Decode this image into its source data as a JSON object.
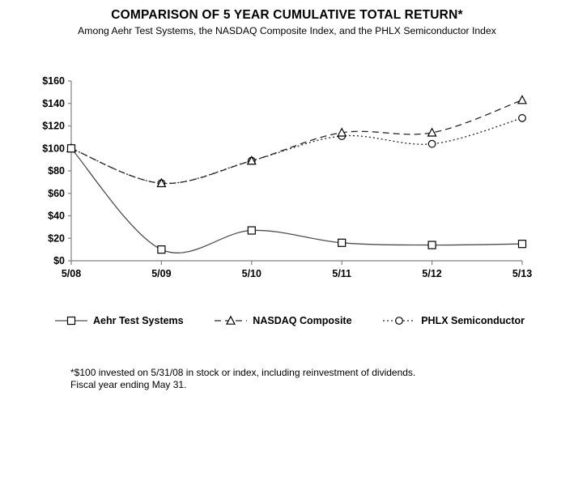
{
  "header": {
    "title": "COMPARISON OF 5 YEAR CUMULATIVE TOTAL RETURN*",
    "subtitle": "Among Aehr Test Systems, the NASDAQ Composite Index, and the PHLX Semiconductor Index"
  },
  "footnote": {
    "line1": "*$100 invested on 5/31/08 in stock or index, including reinvestment of dividends.",
    "line2": "Fiscal year ending May 31."
  },
  "colors": {
    "axis": "#808080",
    "tick_text": "#000000",
    "aehr_line": "#4d4d4d",
    "nasdaq_line": "#262626",
    "phlx_line": "#262626",
    "marker_stroke": "#000000",
    "marker_fill": "#ffffff"
  },
  "chart_data": {
    "type": "line",
    "title": "COMPARISON OF 5 YEAR CUMULATIVE TOTAL RETURN*",
    "subtitle": "Among Aehr Test Systems, the NASDAQ Composite Index, and the PHLX Semiconductor Index",
    "categories": [
      "5/08",
      "5/09",
      "5/10",
      "5/11",
      "5/12",
      "5/13"
    ],
    "y_tick_labels": [
      "$0",
      "$20",
      "$40",
      "$60",
      "$80",
      "$100",
      "$120",
      "$140",
      "$160"
    ],
    "ylim": [
      0,
      160
    ],
    "y_tick_step": 20,
    "grid": false,
    "legend_position": "bottom",
    "series": [
      {
        "name": "Aehr Test Systems",
        "values": [
          100,
          10,
          27,
          16,
          14,
          15
        ],
        "line_style": "solid",
        "marker": "square",
        "color_key": "aehr_line"
      },
      {
        "name": "NASDAQ Composite",
        "values": [
          100,
          69,
          89,
          114,
          114,
          143
        ],
        "line_style": "dashed",
        "marker": "triangle",
        "color_key": "nasdaq_line"
      },
      {
        "name": "PHLX Semiconductor",
        "values": [
          100,
          69,
          89,
          111,
          104,
          127
        ],
        "line_style": "dotted",
        "marker": "circle",
        "color_key": "phlx_line"
      }
    ]
  }
}
